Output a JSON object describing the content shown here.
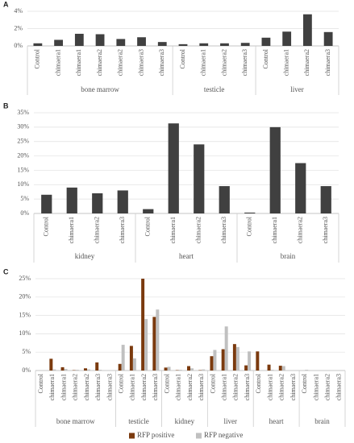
{
  "chart_data": [
    {
      "type": "bar",
      "label": "A",
      "color": "#404040",
      "grid": true,
      "ylim": [
        0,
        4
      ],
      "yticks": [
        {
          "value": 0,
          "label": "0%"
        },
        {
          "value": 2,
          "label": "2%"
        },
        {
          "value": 4,
          "label": "4%"
        }
      ],
      "groups": [
        {
          "name": "bone marrow",
          "categories": [
            "Control",
            "chimaera1",
            "chimaera1",
            "chimaera2",
            "chimaera2",
            "chimaera3",
            "chimaera3"
          ]
        },
        {
          "name": "testicle",
          "categories": [
            "Control",
            "chimaera1",
            "chimaera2",
            "chimaera3"
          ]
        },
        {
          "name": "liver",
          "categories": [
            "Control",
            "chimaera1",
            "chimaera2",
            "chimaera3"
          ]
        }
      ],
      "values": [
        0.3,
        0.7,
        1.4,
        1.35,
        0.8,
        1.0,
        0.45,
        0.2,
        0.3,
        0.3,
        0.35,
        0.95,
        1.65,
        3.65,
        1.6
      ]
    },
    {
      "type": "bar",
      "label": "B",
      "color": "#404040",
      "grid": true,
      "ylim": [
        0,
        35
      ],
      "yticks": [
        {
          "value": 0,
          "label": "0%"
        },
        {
          "value": 5,
          "label": "5%"
        },
        {
          "value": 10,
          "label": "10%"
        },
        {
          "value": 15,
          "label": "15%"
        },
        {
          "value": 20,
          "label": "20%"
        },
        {
          "value": 25,
          "label": "25%"
        },
        {
          "value": 30,
          "label": "30%"
        },
        {
          "value": 35,
          "label": "35%"
        }
      ],
      "groups": [
        {
          "name": "kidney",
          "categories": [
            "Control",
            "chimaera1",
            "chimaera2",
            "chimaera3"
          ]
        },
        {
          "name": "heart",
          "categories": [
            "Control",
            "chimaera1",
            "chimaera2",
            "chimaera3"
          ]
        },
        {
          "name": "brain",
          "categories": [
            "Control",
            "chimaera1",
            "chimaera2",
            "chimaera3"
          ]
        }
      ],
      "values": [
        6.5,
        9,
        7,
        8,
        1.5,
        31.3,
        24,
        9.5,
        0.3,
        30,
        17.5,
        9.5
      ]
    },
    {
      "type": "bar",
      "label": "C",
      "grid": true,
      "legend": "bottom",
      "ylim": [
        0,
        25
      ],
      "yticks": [
        {
          "value": 0,
          "label": "0%"
        },
        {
          "value": 5,
          "label": "5%"
        },
        {
          "value": 10,
          "label": "10%"
        },
        {
          "value": 15,
          "label": "15%"
        },
        {
          "value": 20,
          "label": "20%"
        },
        {
          "value": 25,
          "label": "25%"
        }
      ],
      "groups": [
        {
          "name": "bone marrow",
          "categories": [
            "Control",
            "chimaera1",
            "chimaera1",
            "chimaera2",
            "chimaera2",
            "chimaera3",
            "chimaera3"
          ]
        },
        {
          "name": "testicle",
          "categories": [
            "Control",
            "chimaera1",
            "chimaera2",
            "chimaera3"
          ]
        },
        {
          "name": "kidney",
          "categories": [
            "Control",
            "chimaera1",
            "chimaera2",
            "chimaera3"
          ]
        },
        {
          "name": "liver",
          "categories": [
            "Control",
            "chimaera1",
            "chimaera2",
            "chimaera3"
          ]
        },
        {
          "name": "heart",
          "categories": [
            "Control",
            "chimaera1",
            "chimaera2",
            "chimaera3"
          ]
        },
        {
          "name": "brain",
          "categories": [
            "Control",
            "chimaera1",
            "chimaera2",
            "chimaera3"
          ]
        }
      ],
      "series": [
        {
          "name": "RFP positive",
          "color": "#7b3a0e",
          "values": [
            0,
            3.2,
            0.9,
            0.1,
            0.6,
            2.2,
            0,
            1.8,
            6.7,
            25,
            14.6,
            0.8,
            0.1,
            1.2,
            0.1,
            3.9,
            5.8,
            7.2,
            1.4,
            5.2,
            1.6,
            1.3,
            0,
            0,
            0,
            0,
            0
          ]
        },
        {
          "name": "RFP negative",
          "color": "#c0c0c0",
          "values": [
            0,
            0.3,
            0.4,
            0.2,
            0.3,
            0.2,
            0,
            7.0,
            3.3,
            14,
            16.6,
            1.0,
            0.2,
            0.6,
            0.3,
            5.6,
            12,
            6.4,
            5.2,
            0,
            0.2,
            1.2,
            0,
            0.2,
            0,
            0,
            0
          ]
        }
      ]
    }
  ]
}
